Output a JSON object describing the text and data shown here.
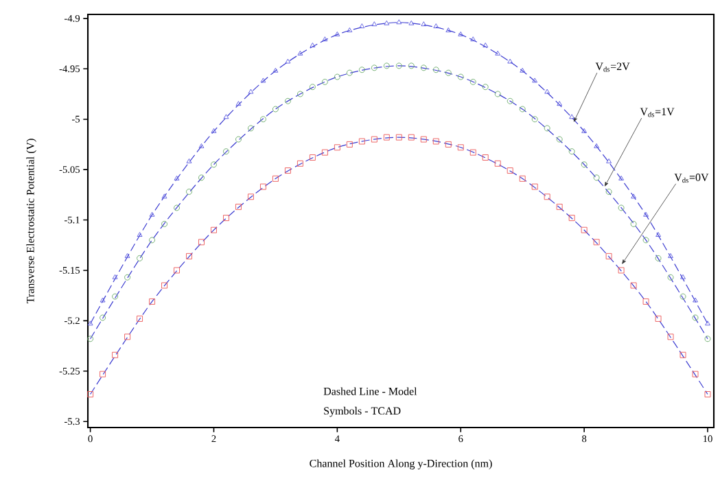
{
  "chart_data": {
    "type": "scatter",
    "xlabel": "Channel Position Along y-Direction (nm)",
    "ylabel": "Transverse Electrostatic Potential (V)",
    "x": [
      0,
      0.2,
      0.4,
      0.6,
      0.8,
      1,
      1.2,
      1.4,
      1.6,
      1.8,
      2,
      2.2,
      2.4,
      2.6,
      2.8,
      3,
      3.2,
      3.4,
      3.6,
      3.8,
      4,
      4.2,
      4.4,
      4.6,
      4.8,
      5,
      5.2,
      5.4,
      5.6,
      5.8,
      6,
      6.2,
      6.4,
      6.6,
      6.8,
      7,
      7.2,
      7.4,
      7.6,
      7.8,
      8,
      8.2,
      8.4,
      8.6,
      8.8,
      9,
      9.2,
      9.4,
      9.6,
      9.8,
      10
    ],
    "series": [
      {
        "marker": "triangle",
        "color": "#5b5be0",
        "values": [
          -5.203,
          -5.18,
          -5.157,
          -5.136,
          -5.115,
          -5.095,
          -5.077,
          -5.059,
          -5.042,
          -5.027,
          -5.012,
          -4.998,
          -4.985,
          -4.973,
          -4.962,
          -4.952,
          -4.943,
          -4.935,
          -4.927,
          -4.921,
          -4.916,
          -4.912,
          -4.908,
          -4.906,
          -4.905,
          -4.904,
          -4.905,
          -4.906,
          -4.908,
          -4.912,
          -4.916,
          -4.921,
          -4.927,
          -4.935,
          -4.943,
          -4.952,
          -4.962,
          -4.973,
          -4.985,
          -4.998,
          -5.012,
          -5.027,
          -5.042,
          -5.059,
          -5.077,
          -5.095,
          -5.115,
          -5.136,
          -5.157,
          -5.18,
          -5.203
        ]
      },
      {
        "marker": "circle",
        "color": "#6aaa6a",
        "values": [
          -5.218,
          -5.197,
          -5.176,
          -5.157,
          -5.138,
          -5.12,
          -5.104,
          -5.088,
          -5.072,
          -5.058,
          -5.045,
          -5.032,
          -5.02,
          -5.009,
          -5.0,
          -4.99,
          -4.982,
          -4.975,
          -4.968,
          -4.963,
          -4.958,
          -4.954,
          -4.951,
          -4.949,
          -4.947,
          -4.947,
          -4.947,
          -4.949,
          -4.951,
          -4.954,
          -4.958,
          -4.963,
          -4.968,
          -4.975,
          -4.982,
          -4.99,
          -5.0,
          -5.009,
          -5.02,
          -5.032,
          -5.045,
          -5.058,
          -5.072,
          -5.088,
          -5.104,
          -5.12,
          -5.138,
          -5.157,
          -5.176,
          -5.197,
          -5.218
        ]
      },
      {
        "marker": "square",
        "color": "#ec5a5a",
        "values": [
          -5.273,
          -5.253,
          -5.234,
          -5.216,
          -5.198,
          -5.181,
          -5.165,
          -5.15,
          -5.136,
          -5.122,
          -5.11,
          -5.098,
          -5.087,
          -5.077,
          -5.067,
          -5.059,
          -5.051,
          -5.044,
          -5.038,
          -5.033,
          -5.028,
          -5.025,
          -5.022,
          -5.02,
          -5.018,
          -5.018,
          -5.018,
          -5.02,
          -5.022,
          -5.025,
          -5.028,
          -5.033,
          -5.038,
          -5.044,
          -5.051,
          -5.059,
          -5.067,
          -5.077,
          -5.087,
          -5.098,
          -5.11,
          -5.122,
          -5.136,
          -5.15,
          -5.165,
          -5.181,
          -5.198,
          -5.216,
          -5.234,
          -5.253,
          -5.273
        ]
      },
      {
        "type": "line",
        "line_style": "dashed",
        "color": "#3a3ad0",
        "x": [
          0,
          1,
          2,
          3,
          4,
          5,
          6,
          7,
          8,
          9,
          10
        ],
        "values": [
          -5.203,
          -5.095,
          -5.012,
          -4.952,
          -4.916,
          -4.904,
          -4.916,
          -4.952,
          -5.012,
          -5.095,
          -5.203
        ]
      },
      {
        "type": "line",
        "line_style": "dashed",
        "color": "#3a3ad0",
        "x": [
          0,
          1,
          2,
          3,
          4,
          5,
          6,
          7,
          8,
          9,
          10
        ],
        "values": [
          -5.218,
          -5.12,
          -5.045,
          -4.99,
          -4.958,
          -4.947,
          -4.958,
          -4.99,
          -5.045,
          -5.12,
          -5.218
        ]
      },
      {
        "type": "line",
        "line_style": "dashed",
        "color": "#3a3ad0",
        "x": [
          0,
          1,
          2,
          3,
          4,
          5,
          6,
          7,
          8,
          9,
          10
        ],
        "values": [
          -5.273,
          -5.181,
          -5.11,
          -5.059,
          -5.028,
          -5.018,
          -5.028,
          -5.059,
          -5.11,
          -5.181,
          -5.273
        ]
      }
    ],
    "xlim": [
      -0.04,
      10.1
    ],
    "ylim": [
      -5.306,
      -4.896
    ],
    "xticks": [
      0,
      2,
      4,
      6,
      8,
      10
    ],
    "yticks": [
      -5.3,
      -5.25,
      -5.2,
      -5.15,
      -5.1,
      -5.05,
      -5,
      -4.95,
      -4.9
    ],
    "annotations": [
      {
        "text": "V$_{ds}$=2V",
        "x": 7.83,
        "y": -5.003
      },
      {
        "text": "V$_{ds}$=1V",
        "x": 8.33,
        "y": -5.067
      },
      {
        "text": "V$_{ds}$=0V",
        "x": 8.61,
        "y": -5.144
      },
      "Dashed Line - Model",
      "Symbols - TCAD"
    ]
  }
}
